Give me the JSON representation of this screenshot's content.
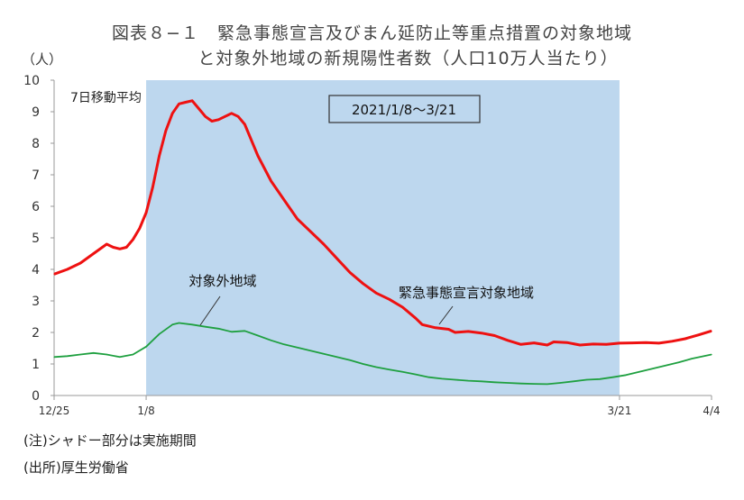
{
  "title_line1": "図表８−１　緊急事態宣言及びまん延防止等重点措置の対象地域",
  "title_line2": "と対象外地域の新規陽性者数（人口10万人当たり）",
  "unit": "（人）",
  "notes": [
    "(注)シャドー部分は実施期間",
    "(出所)厚生労働省"
  ],
  "chart_data": {
    "type": "line",
    "title": "図表８−１　緊急事態宣言及びまん延防止等重点措置の対象地域と対象外地域の新規陽性者数（人口10万人当たり）",
    "ylabel": "（人）",
    "ylim": [
      0,
      10
    ],
    "yticks": [
      0,
      1,
      2,
      3,
      4,
      5,
      6,
      7,
      8,
      9,
      10
    ],
    "xlim": [
      "2020-12-25",
      "2021-04-04"
    ],
    "xticks": [
      {
        "date": "2020-12-25",
        "label": "12/25"
      },
      {
        "date": "2021-01-08",
        "label": "1/8"
      },
      {
        "date": "2021-03-21",
        "label": "3/21"
      },
      {
        "date": "2021-04-04",
        "label": "4/4"
      }
    ],
    "inner_label": "7日移動平均",
    "shaded_period": {
      "start": "2021-01-08",
      "end": "2021-03-21",
      "label": "2021/1/8〜3/21",
      "color": "#bdd7ee"
    },
    "grid": false,
    "series": [
      {
        "name": "緊急事態宣言対象地域",
        "color": "#ee1111",
        "points": [
          [
            "2020-12-25",
            3.85
          ],
          [
            "2020-12-27",
            4.0
          ],
          [
            "2020-12-29",
            4.2
          ],
          [
            "2020-12-31",
            4.5
          ],
          [
            "2021-01-02",
            4.8
          ],
          [
            "2021-01-03",
            4.7
          ],
          [
            "2021-01-04",
            4.65
          ],
          [
            "2021-01-05",
            4.7
          ],
          [
            "2021-01-06",
            4.95
          ],
          [
            "2021-01-07",
            5.3
          ],
          [
            "2021-01-08",
            5.8
          ],
          [
            "2021-01-09",
            6.6
          ],
          [
            "2021-01-10",
            7.6
          ],
          [
            "2021-01-11",
            8.4
          ],
          [
            "2021-01-12",
            8.95
          ],
          [
            "2021-01-13",
            9.25
          ],
          [
            "2021-01-14",
            9.3
          ],
          [
            "2021-01-15",
            9.35
          ],
          [
            "2021-01-16",
            9.1
          ],
          [
            "2021-01-17",
            8.85
          ],
          [
            "2021-01-18",
            8.7
          ],
          [
            "2021-01-19",
            8.75
          ],
          [
            "2021-01-20",
            8.85
          ],
          [
            "2021-01-21",
            8.95
          ],
          [
            "2021-01-22",
            8.85
          ],
          [
            "2021-01-23",
            8.6
          ],
          [
            "2021-01-25",
            7.6
          ],
          [
            "2021-01-27",
            6.8
          ],
          [
            "2021-01-29",
            6.2
          ],
          [
            "2021-01-31",
            5.6
          ],
          [
            "2021-02-02",
            5.2
          ],
          [
            "2021-02-04",
            4.8
          ],
          [
            "2021-02-06",
            4.35
          ],
          [
            "2021-02-08",
            3.9
          ],
          [
            "2021-02-10",
            3.55
          ],
          [
            "2021-02-12",
            3.25
          ],
          [
            "2021-02-14",
            3.05
          ],
          [
            "2021-02-16",
            2.8
          ],
          [
            "2021-02-18",
            2.45
          ],
          [
            "2021-02-19",
            2.25
          ],
          [
            "2021-02-21",
            2.15
          ],
          [
            "2021-02-23",
            2.1
          ],
          [
            "2021-02-24",
            2.0
          ],
          [
            "2021-02-26",
            2.03
          ],
          [
            "2021-02-28",
            1.98
          ],
          [
            "2021-03-02",
            1.9
          ],
          [
            "2021-03-04",
            1.75
          ],
          [
            "2021-03-06",
            1.62
          ],
          [
            "2021-03-08",
            1.67
          ],
          [
            "2021-03-10",
            1.6
          ],
          [
            "2021-03-11",
            1.7
          ],
          [
            "2021-03-13",
            1.68
          ],
          [
            "2021-03-15",
            1.6
          ],
          [
            "2021-03-17",
            1.63
          ],
          [
            "2021-03-19",
            1.62
          ],
          [
            "2021-03-21",
            1.66
          ],
          [
            "2021-03-23",
            1.67
          ],
          [
            "2021-03-25",
            1.68
          ],
          [
            "2021-03-27",
            1.66
          ],
          [
            "2021-03-29",
            1.72
          ],
          [
            "2021-03-31",
            1.8
          ],
          [
            "2021-04-02",
            1.92
          ],
          [
            "2021-04-04",
            2.05
          ]
        ]
      },
      {
        "name": "対象外地域",
        "color": "#1fa040",
        "points": [
          [
            "2020-12-25",
            1.22
          ],
          [
            "2020-12-27",
            1.25
          ],
          [
            "2020-12-29",
            1.3
          ],
          [
            "2020-12-31",
            1.35
          ],
          [
            "2021-01-02",
            1.3
          ],
          [
            "2021-01-04",
            1.22
          ],
          [
            "2021-01-06",
            1.3
          ],
          [
            "2021-01-08",
            1.55
          ],
          [
            "2021-01-10",
            1.95
          ],
          [
            "2021-01-12",
            2.25
          ],
          [
            "2021-01-13",
            2.3
          ],
          [
            "2021-01-15",
            2.25
          ],
          [
            "2021-01-17",
            2.18
          ],
          [
            "2021-01-19",
            2.12
          ],
          [
            "2021-01-21",
            2.02
          ],
          [
            "2021-01-23",
            2.05
          ],
          [
            "2021-01-25",
            1.9
          ],
          [
            "2021-01-27",
            1.75
          ],
          [
            "2021-01-29",
            1.62
          ],
          [
            "2021-01-31",
            1.52
          ],
          [
            "2021-02-02",
            1.42
          ],
          [
            "2021-02-04",
            1.32
          ],
          [
            "2021-02-06",
            1.22
          ],
          [
            "2021-02-08",
            1.12
          ],
          [
            "2021-02-10",
            1.0
          ],
          [
            "2021-02-12",
            0.9
          ],
          [
            "2021-02-14",
            0.82
          ],
          [
            "2021-02-16",
            0.75
          ],
          [
            "2021-02-18",
            0.67
          ],
          [
            "2021-02-20",
            0.58
          ],
          [
            "2021-02-22",
            0.53
          ],
          [
            "2021-02-24",
            0.5
          ],
          [
            "2021-02-26",
            0.47
          ],
          [
            "2021-02-28",
            0.45
          ],
          [
            "2021-03-02",
            0.42
          ],
          [
            "2021-03-04",
            0.4
          ],
          [
            "2021-03-06",
            0.38
          ],
          [
            "2021-03-08",
            0.37
          ],
          [
            "2021-03-10",
            0.36
          ],
          [
            "2021-03-12",
            0.4
          ],
          [
            "2021-03-14",
            0.45
          ],
          [
            "2021-03-16",
            0.5
          ],
          [
            "2021-03-18",
            0.52
          ],
          [
            "2021-03-20",
            0.58
          ],
          [
            "2021-03-22",
            0.65
          ],
          [
            "2021-03-24",
            0.75
          ],
          [
            "2021-03-26",
            0.85
          ],
          [
            "2021-03-28",
            0.95
          ],
          [
            "2021-03-30",
            1.05
          ],
          [
            "2021-04-01",
            1.17
          ],
          [
            "2021-04-04",
            1.3
          ]
        ]
      }
    ],
    "annotations": [
      {
        "text": "対象外地域",
        "series": "対象外地域",
        "date": "2021-01-17"
      },
      {
        "text": "緊急事態宣言対象地域",
        "series": "緊急事態宣言対象地域",
        "date": "2021-03-02"
      }
    ]
  }
}
